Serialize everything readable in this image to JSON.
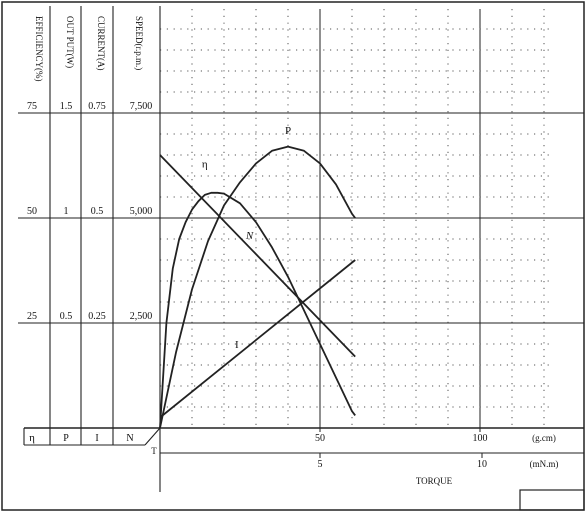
{
  "chart_data": {
    "type": "line",
    "title": "",
    "scale_headers": [
      "EFFICIENCY(%)",
      "OUT PUT(W)",
      "CURRENT(A)",
      "SPEED(r.p.m.)"
    ],
    "scale_rows": [
      {
        "efficiency": "75",
        "output": "1.5",
        "current": "0.75",
        "speed": "7,500"
      },
      {
        "efficiency": "50",
        "output": "1",
        "current": "0.5",
        "speed": "5,000"
      },
      {
        "efficiency": "25",
        "output": "0.5",
        "current": "0.25",
        "speed": "2,500"
      }
    ],
    "symbols": [
      "η",
      "P",
      "I",
      "N"
    ],
    "x_axis_gcm": {
      "ticks": [
        "50",
        "100"
      ],
      "unit": "(g.cm)",
      "range": [
        0,
        125
      ]
    },
    "x_axis_mNm": {
      "ticks": [
        "5",
        "10"
      ],
      "unit": "(mN.m)"
    },
    "xlabel": "TORQUE",
    "origin_label": "T",
    "ylim_percent_of_full_scale": [
      0,
      100
    ],
    "series": [
      {
        "name": "η",
        "x": [
          0,
          2,
          4,
          6,
          8,
          10,
          12,
          14,
          16,
          18,
          20,
          25,
          30,
          35,
          40,
          45,
          50,
          55,
          60,
          61
        ],
        "y": [
          0,
          25,
          38,
          45,
          49,
          52,
          54,
          55.5,
          56,
          56,
          55.8,
          53.5,
          49,
          43,
          36,
          28,
          20,
          12,
          4,
          3
        ]
      },
      {
        "name": "P",
        "x": [
          0,
          5,
          10,
          15,
          20,
          25,
          30,
          35,
          40,
          45,
          50,
          55,
          60,
          61
        ],
        "y": [
          0,
          18,
          33,
          44.5,
          53,
          58.5,
          63,
          66,
          67,
          66,
          63,
          58,
          51,
          50
        ]
      },
      {
        "name": "N",
        "x": [
          0,
          61
        ],
        "y": [
          65,
          17
        ]
      },
      {
        "name": "I",
        "x": [
          0,
          61
        ],
        "y": [
          2.5,
          40
        ]
      }
    ],
    "grid": true
  }
}
